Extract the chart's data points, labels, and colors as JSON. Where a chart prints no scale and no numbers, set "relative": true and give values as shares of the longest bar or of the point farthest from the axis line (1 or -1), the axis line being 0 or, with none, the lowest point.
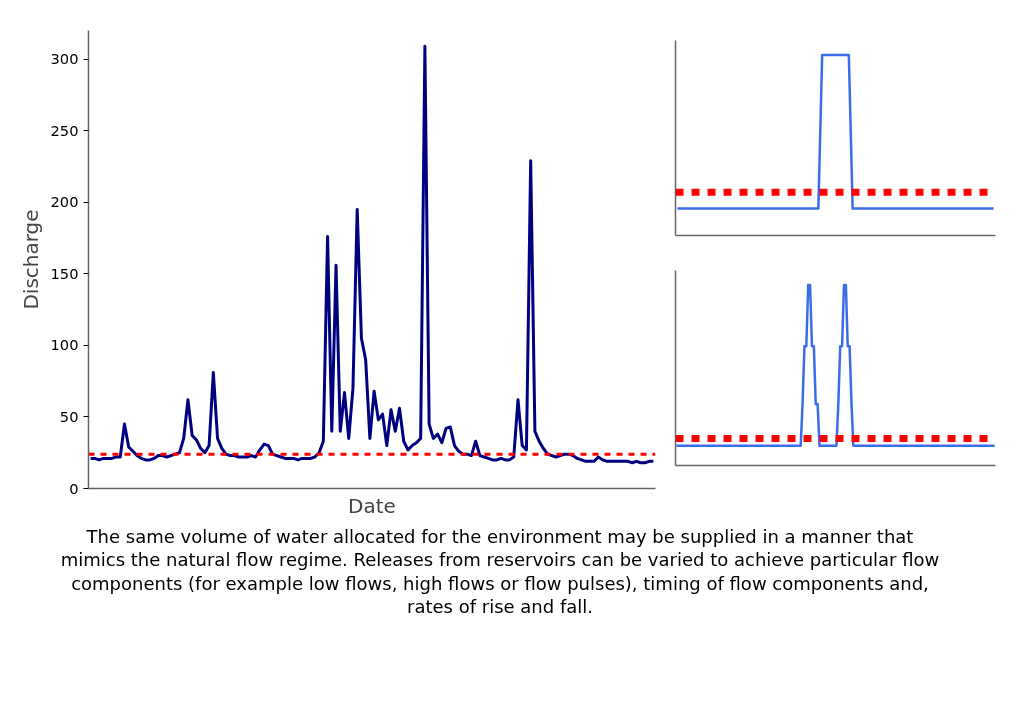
{
  "chart_data": [
    {
      "type": "line",
      "xlabel": "Date",
      "ylabel": "Discharge",
      "tick_labels": "y",
      "ylim": [
        0,
        320
      ],
      "yticks": [
        0,
        50,
        100,
        150,
        200,
        250,
        300
      ],
      "categories": [
        null,
        null,
        null,
        null,
        null,
        null,
        null,
        null,
        null,
        null,
        null,
        null,
        null,
        null,
        null,
        null,
        null,
        null,
        null,
        null,
        null,
        null,
        null,
        null,
        null,
        null,
        null,
        null,
        null,
        null,
        null,
        null,
        null,
        null,
        null,
        null,
        null,
        null,
        null,
        null,
        null,
        null,
        null,
        null,
        null,
        null,
        null,
        null,
        null,
        null,
        null,
        null,
        null,
        null,
        null,
        null,
        null,
        null,
        null,
        null,
        null,
        null,
        null,
        null,
        null,
        null,
        null,
        null,
        null,
        null,
        null,
        null,
        null,
        null,
        null,
        null,
        null,
        null,
        null,
        null,
        null,
        null,
        null,
        null,
        null,
        null,
        null,
        null,
        null,
        null,
        null,
        null,
        null,
        null,
        null,
        null,
        null,
        null,
        null,
        null,
        null,
        null,
        null,
        null,
        null,
        null,
        null,
        null,
        null,
        null,
        null,
        null,
        null,
        null,
        null,
        null,
        null,
        null,
        null,
        null,
        null,
        null,
        null,
        null,
        null,
        null,
        null,
        null,
        null,
        null,
        null,
        null,
        null,
        null
      ],
      "series": [
        {
          "color": "#000080",
          "values": [
            21,
            21,
            20,
            21,
            21,
            21,
            22,
            22,
            45,
            29,
            26,
            23,
            21,
            20,
            20,
            21,
            23,
            23,
            22,
            23,
            24,
            25,
            35,
            62,
            37,
            34,
            28,
            25,
            30,
            81,
            35,
            28,
            24,
            23,
            23,
            22,
            22,
            22,
            23,
            22,
            27,
            31,
            30,
            24,
            23,
            22,
            21,
            21,
            21,
            20,
            21,
            21,
            21,
            22,
            25,
            33,
            176,
            40,
            156,
            40,
            67,
            35,
            70,
            195,
            105,
            90,
            35,
            68,
            48,
            52,
            30,
            55,
            40,
            56,
            33,
            27,
            30,
            32,
            35,
            309,
            45,
            35,
            38,
            32,
            42,
            43,
            30,
            26,
            24,
            24,
            23,
            33,
            23,
            22,
            21,
            20,
            20,
            21,
            20,
            20,
            22,
            62,
            30,
            27,
            229,
            40,
            33,
            28,
            24,
            23,
            22,
            23,
            24,
            24,
            23,
            21,
            20,
            19,
            19,
            19,
            22,
            20,
            19,
            19,
            19,
            19,
            19,
            19,
            18,
            19,
            18,
            18,
            19,
            19
          ]
        }
      ],
      "line_style": "solid",
      "marker": "none",
      "ref_lines": [
        {
          "axis": "y",
          "value": 24,
          "color": "#ff0000",
          "line_style": "dashed"
        }
      ],
      "annotations": [
        "The same volume of water allocated for the environment may be supplied in a manner that mimics the natural flow regime. Releases from reservoirs can be varied to achieve particular flow components (for example low flows, high flows or flow pulses), timing of flow components and, rates of rise and fall."
      ]
    },
    {
      "type": "line",
      "relative": true,
      "tick_labels": false,
      "categories": [
        null,
        null,
        null,
        null,
        null,
        null,
        null,
        null,
        null,
        null,
        null,
        null,
        null,
        null,
        null,
        null,
        null,
        null,
        null,
        null,
        null,
        null,
        null,
        null,
        null,
        null,
        null,
        null,
        null,
        null,
        null,
        null,
        null,
        null,
        null,
        null,
        null,
        null,
        null,
        null,
        null,
        null,
        null,
        null,
        null,
        null,
        null,
        null,
        null,
        null,
        null,
        null,
        null,
        null,
        null,
        null,
        null,
        null,
        null,
        null,
        null,
        null,
        null,
        null,
        null,
        null,
        null,
        null,
        null,
        null,
        null,
        null,
        null,
        null,
        null,
        null,
        null,
        null,
        null,
        null,
        null,
        null,
        null,
        null
      ],
      "series": [
        {
          "color": "#3a6ee8",
          "values": [
            0.15,
            0.15,
            0.15,
            0.15,
            0.15,
            0.15,
            0.15,
            0.15,
            0.15,
            0.15,
            0.15,
            0.15,
            0.15,
            0.15,
            0.15,
            0.15,
            0.15,
            0.15,
            0.15,
            0.15,
            0.15,
            0.15,
            0.15,
            0.15,
            0.15,
            0.15,
            0.15,
            0.15,
            0.15,
            0.15,
            0.15,
            0.15,
            0.15,
            0.15,
            0.15,
            0.15,
            0.15,
            0.15,
            1,
            1,
            1,
            1,
            1,
            1,
            1,
            1,
            0.15,
            0.15,
            0.15,
            0.15,
            0.15,
            0.15,
            0.15,
            0.15,
            0.15,
            0.15,
            0.15,
            0.15,
            0.15,
            0.15,
            0.15,
            0.15,
            0.15,
            0.15,
            0.15,
            0.15,
            0.15,
            0.15,
            0.15,
            0.15,
            0.15,
            0.15,
            0.15,
            0.15,
            0.15,
            0.15,
            0.15,
            0.15,
            0.15,
            0.15,
            0.15,
            0.15,
            0.15,
            0.15
          ]
        }
      ],
      "line_style": "solid",
      "marker": "none",
      "ref_lines": [
        {
          "axis": "y",
          "value": 0.24,
          "color": "#ff0000",
          "line_style": "dotted"
        }
      ]
    },
    {
      "type": "line",
      "relative": true,
      "tick_labels": false,
      "categories": [
        null,
        null,
        null,
        null,
        null,
        null,
        null,
        null,
        null,
        null,
        null,
        null,
        null,
        null,
        null,
        null,
        null,
        null,
        null,
        null,
        null,
        null,
        null,
        null,
        null,
        null,
        null,
        null,
        null,
        null,
        null,
        null,
        null,
        null,
        null,
        null,
        null,
        null,
        null,
        null,
        null,
        null,
        null,
        null,
        null,
        null,
        null,
        null,
        null,
        null,
        null,
        null,
        null,
        null,
        null,
        null,
        null,
        null,
        null,
        null,
        null,
        null,
        null,
        null,
        null,
        null,
        null,
        null,
        null,
        null,
        null,
        null,
        null,
        null,
        null,
        null,
        null,
        null,
        null,
        null,
        null,
        null,
        null,
        null,
        null,
        null,
        null,
        null,
        null,
        null,
        null,
        null,
        null,
        null,
        null,
        null,
        null,
        null,
        null,
        null,
        null,
        null,
        null,
        null,
        null,
        null,
        null,
        null,
        null,
        null,
        null,
        null,
        null,
        null,
        null,
        null,
        null,
        null,
        null,
        null,
        null,
        null,
        null,
        null,
        null,
        null,
        null,
        null,
        null,
        null,
        null,
        null,
        null,
        null,
        null,
        null,
        null,
        null,
        null,
        null,
        null,
        null,
        null,
        null,
        null,
        null,
        null,
        null,
        null,
        null,
        null,
        null,
        null,
        null,
        null,
        null,
        null,
        null,
        null,
        null,
        null,
        null,
        null,
        null,
        null,
        null,
        null,
        null,
        null,
        null
      ],
      "series": [
        {
          "color": "#3a6ee8",
          "values": [
            0.11,
            0.11,
            0.11,
            0.11,
            0.11,
            0.11,
            0.11,
            0.11,
            0.11,
            0.11,
            0.11,
            0.11,
            0.11,
            0.11,
            0.11,
            0.11,
            0.11,
            0.11,
            0.11,
            0.11,
            0.11,
            0.11,
            0.11,
            0.11,
            0.11,
            0.11,
            0.11,
            0.11,
            0.11,
            0.11,
            0.11,
            0.11,
            0.11,
            0.11,
            0.11,
            0.11,
            0.11,
            0.11,
            0.11,
            0.11,
            0.11,
            0.11,
            0.11,
            0.11,
            0.11,
            0.11,
            0.11,
            0.11,
            0.11,
            0.11,
            0.11,
            0.11,
            0.11,
            0.11,
            0.11,
            0.11,
            0.11,
            0.11,
            0.11,
            0.11,
            0.11,
            0.11,
            0.11,
            0.11,
            0.11,
            0.11,
            0.11,
            0.34,
            0.66,
            0.66,
            1,
            1,
            0.66,
            0.66,
            0.34,
            0.34,
            0.11,
            0.11,
            0.11,
            0.11,
            0.11,
            0.11,
            0.11,
            0.11,
            0.11,
            0.11,
            0.34,
            0.66,
            0.66,
            1,
            1,
            0.66,
            0.66,
            0.34,
            0.11,
            0.11,
            0.11,
            0.11,
            0.11,
            0.11,
            0.11,
            0.11,
            0.11,
            0.11,
            0.11,
            0.11,
            0.11,
            0.11,
            0.11,
            0.11,
            0.11,
            0.11,
            0.11,
            0.11,
            0.11,
            0.11,
            0.11,
            0.11,
            0.11,
            0.11,
            0.11,
            0.11,
            0.11,
            0.11,
            0.11,
            0.11,
            0.11,
            0.11,
            0.11,
            0.11,
            0.11,
            0.11,
            0.11,
            0.11,
            0.11,
            0.11,
            0.11,
            0.11,
            0.11,
            0.11,
            0.11,
            0.11,
            0.11,
            0.11,
            0.11,
            0.11,
            0.11,
            0.11,
            0.11,
            0.11,
            0.11,
            0.11,
            0.11,
            0.11,
            0.11,
            0.11,
            0.11,
            0.11,
            0.11,
            0.11,
            0.11,
            0.11,
            0.11,
            0.11,
            0.11,
            0.11,
            0.11,
            0.11,
            0.11,
            0.11
          ]
        }
      ],
      "line_style": "solid",
      "marker": "none",
      "ref_lines": [
        {
          "axis": "y",
          "value": 0.15,
          "color": "#ff0000",
          "line_style": "dotted"
        }
      ]
    }
  ]
}
